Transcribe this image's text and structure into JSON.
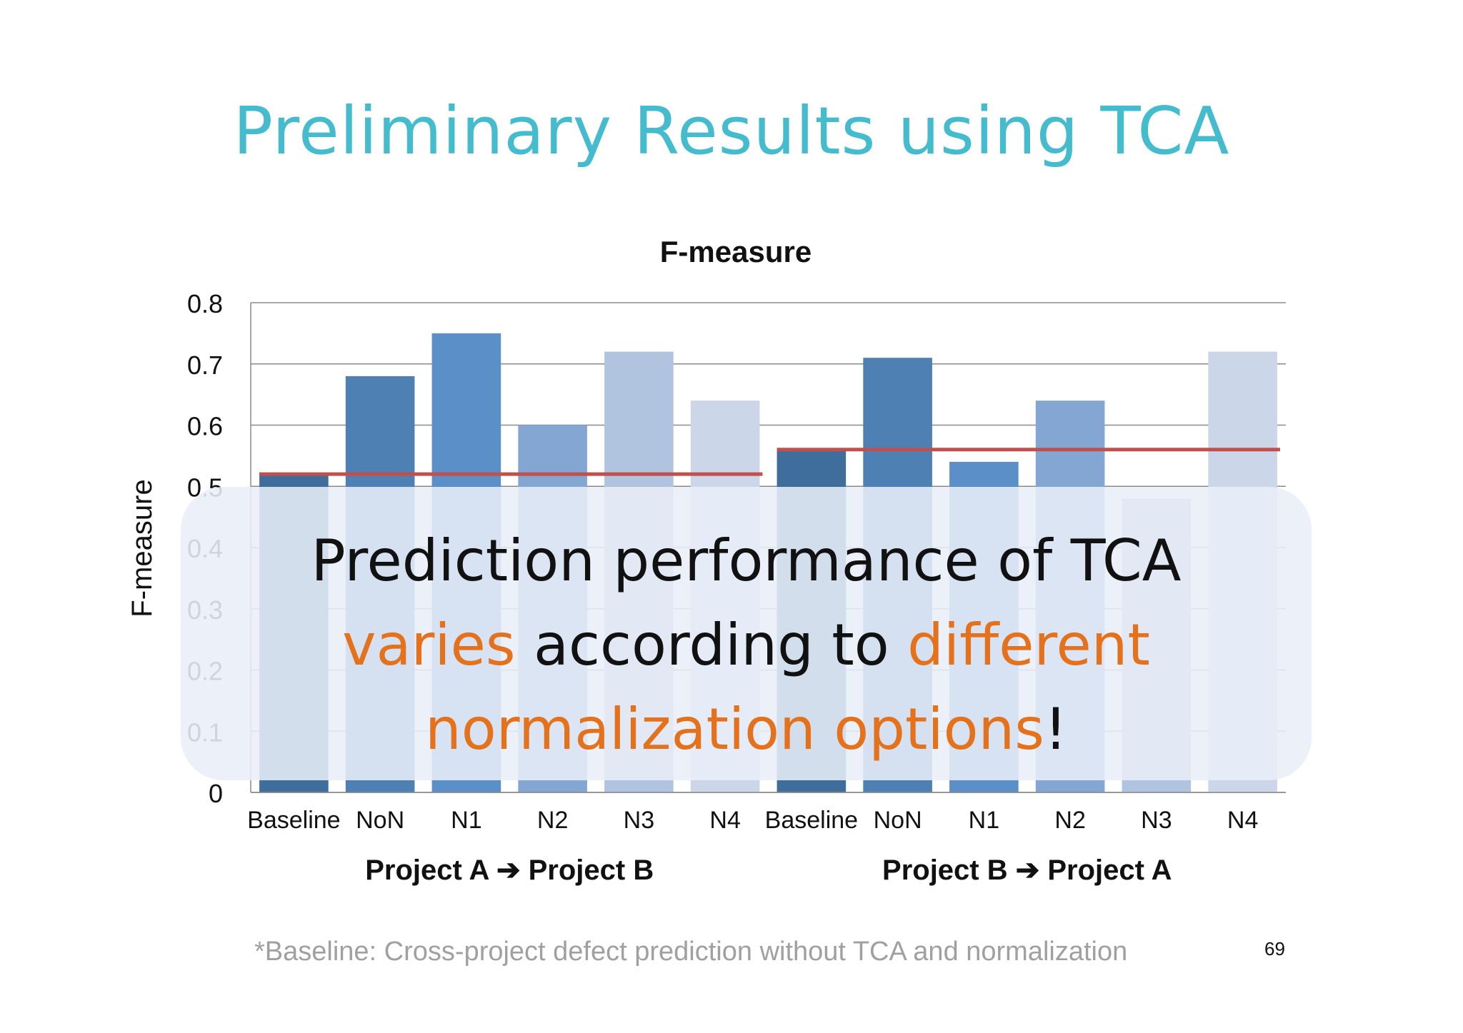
{
  "slide": {
    "title": "Preliminary Results using TCA",
    "footnote": "*Baseline: Cross-project defect prediction without TCA and normalization",
    "page_number": "69"
  },
  "overlay": {
    "line1": "Prediction performance of TCA",
    "word_varies": "varies",
    "word_according": " according to ",
    "word_different": "different",
    "word_options": "normalization options",
    "word_bang": "!"
  },
  "chart_data": {
    "type": "bar",
    "title": "F-measure",
    "ylabel": "F-measure",
    "xlabel": "",
    "ylim": [
      0,
      0.8
    ],
    "yticks": [
      "0",
      "0.1",
      "0.2",
      "0.3",
      "0.4",
      "0.5",
      "0.6",
      "0.7",
      "0.8"
    ],
    "grid": true,
    "groups": [
      {
        "label": "Project A ➔ Project B",
        "categories": [
          "Baseline",
          "NoN",
          "N1",
          "N2",
          "N3",
          "N4"
        ],
        "values": [
          0.52,
          0.68,
          0.75,
          0.6,
          0.72,
          0.64
        ],
        "baseline_value": 0.52
      },
      {
        "label": "Project B ➔ Project A",
        "categories": [
          "Baseline",
          "NoN",
          "N1",
          "N2",
          "N3",
          "N4"
        ],
        "values": [
          0.56,
          0.71,
          0.54,
          0.64,
          0.48,
          0.72
        ],
        "baseline_value": 0.56
      }
    ],
    "bar_colors": [
      "#3f6e9c",
      "#4f80b3",
      "#5b8fc7",
      "#83a7d2",
      "#b0c4df",
      "#cbd7e8"
    ],
    "baseline_line_color": "#c0504d"
  }
}
